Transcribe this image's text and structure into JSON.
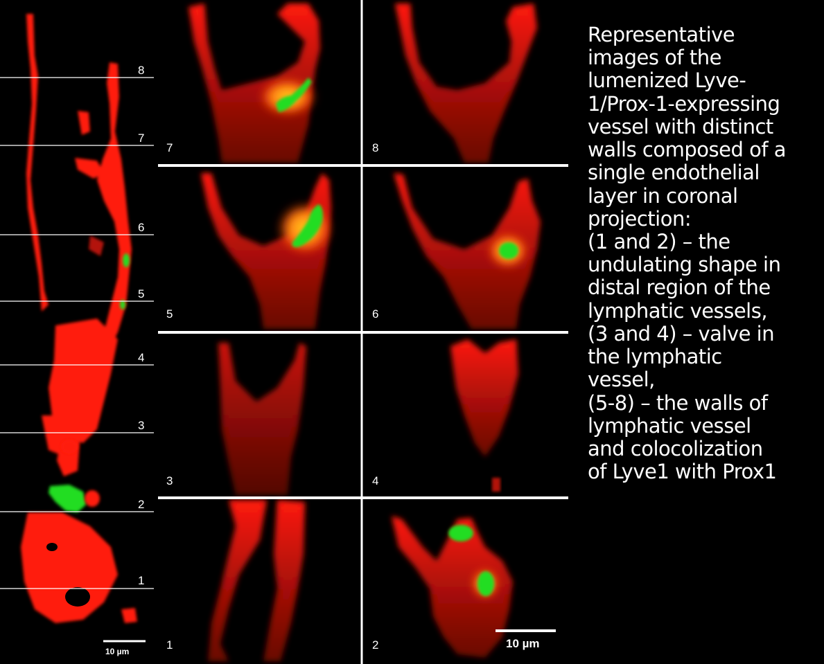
{
  "left_strip": {
    "section_labels": [
      "8",
      "7",
      "6",
      "5",
      "4",
      "3",
      "2",
      "1"
    ],
    "scale_bar_label": "10 µm"
  },
  "panels": [
    {
      "label": "7"
    },
    {
      "label": "8"
    },
    {
      "label": "5"
    },
    {
      "label": "6"
    },
    {
      "label": "3"
    },
    {
      "label": "4"
    },
    {
      "label": "1"
    },
    {
      "label": "2"
    }
  ],
  "panel_scale_bar_label": "10 µm",
  "caption_lines": [
    "Representative",
    "images of the",
    "lumenized Lyve-",
    "1/Prox-1-expressing",
    "vessel with distinct",
    "walls composed of a",
    "single endothelial",
    "layer in coronal",
    "projection:",
    "(1 and 2) – the",
    "undulating shape in",
    "distal region of the",
    "lymphatic vessels,",
    "(3 and 4) – valve in",
    "the lymphatic",
    "vessel,",
    "(5-8) – the walls of",
    "lymphatic vessel",
    "and colocolization",
    "of Lyve1 with Prox1"
  ],
  "colors": {
    "background": "#000000",
    "lyve1": "#ff1a0a",
    "prox1": "#22dd22",
    "text": "#ffffff",
    "lines": "#ffffff"
  }
}
